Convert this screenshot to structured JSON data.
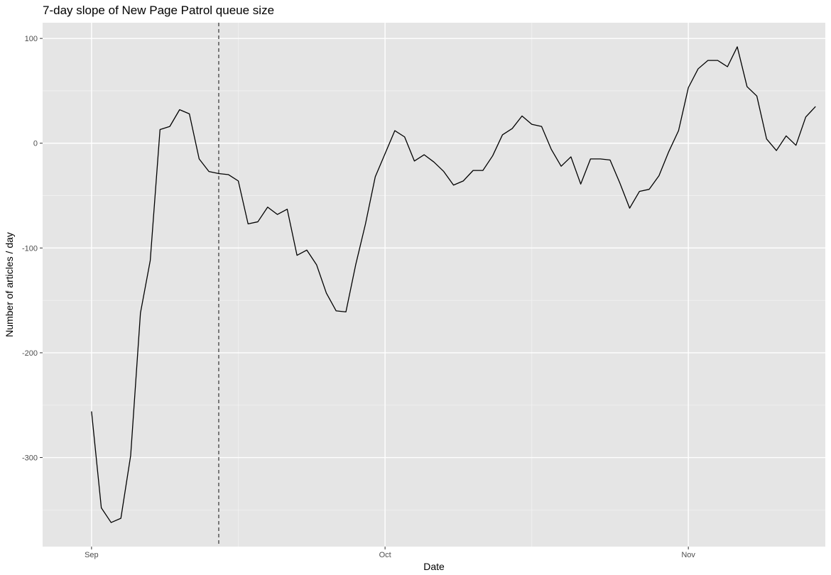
{
  "chart_data": {
    "type": "line",
    "title": "7-day slope of New Page Patrol queue size",
    "xlabel": "Date",
    "ylabel": "Number of articles / day",
    "x_start": "2018-08-27",
    "x_end": "2018-11-15",
    "ylim": [
      -385,
      115
    ],
    "x_ticks": [
      {
        "date": "2018-09-01",
        "label": "Sep"
      },
      {
        "date": "2018-10-01",
        "label": "Oct"
      },
      {
        "date": "2018-11-01",
        "label": "Nov"
      }
    ],
    "x_minor_ticks": [
      "2018-09-16",
      "2018-10-16",
      "2018-11-16"
    ],
    "y_ticks": [
      {
        "value": 100,
        "label": "100"
      },
      {
        "value": 0,
        "label": "0"
      },
      {
        "value": -100,
        "label": "-100"
      },
      {
        "value": -200,
        "label": "-200"
      },
      {
        "value": -300,
        "label": "-300"
      }
    ],
    "y_minor_ticks": [
      50,
      -50,
      -150,
      -250,
      -350
    ],
    "vline": {
      "date": "2018-09-14",
      "style": "dashed"
    },
    "series": [
      {
        "color": "#000000",
        "x": [
          "2018-09-01",
          "2018-09-02",
          "2018-09-03",
          "2018-09-04",
          "2018-09-05",
          "2018-09-06",
          "2018-09-07",
          "2018-09-08",
          "2018-09-09",
          "2018-09-10",
          "2018-09-11",
          "2018-09-12",
          "2018-09-13",
          "2018-09-14",
          "2018-09-15",
          "2018-09-16",
          "2018-09-17",
          "2018-09-18",
          "2018-09-19",
          "2018-09-20",
          "2018-09-21",
          "2018-09-22",
          "2018-09-23",
          "2018-09-24",
          "2018-09-25",
          "2018-09-26",
          "2018-09-27",
          "2018-09-28",
          "2018-09-29",
          "2018-09-30",
          "2018-10-01",
          "2018-10-02",
          "2018-10-03",
          "2018-10-04",
          "2018-10-05",
          "2018-10-06",
          "2018-10-07",
          "2018-10-08",
          "2018-10-09",
          "2018-10-10",
          "2018-10-11",
          "2018-10-12",
          "2018-10-13",
          "2018-10-14",
          "2018-10-15",
          "2018-10-16",
          "2018-10-17",
          "2018-10-18",
          "2018-10-19",
          "2018-10-20",
          "2018-10-21",
          "2018-10-22",
          "2018-10-23",
          "2018-10-24",
          "2018-10-25",
          "2018-10-26",
          "2018-10-27",
          "2018-10-28",
          "2018-10-29",
          "2018-10-30",
          "2018-10-31",
          "2018-11-01",
          "2018-11-02",
          "2018-11-03",
          "2018-11-04",
          "2018-11-05",
          "2018-11-06",
          "2018-11-07",
          "2018-11-08",
          "2018-11-09",
          "2018-11-10",
          "2018-11-11",
          "2018-11-12",
          "2018-11-13",
          "2018-11-14"
        ],
        "values": [
          -256,
          -348,
          -362,
          -358,
          -298,
          -162,
          -112,
          13,
          16,
          32,
          28,
          -15,
          -27,
          -29,
          -30,
          -36,
          -77,
          -75,
          -61,
          -68,
          -63,
          -107,
          -102,
          -116,
          -143,
          -160,
          -161,
          -116,
          -77,
          -32,
          -10,
          12,
          6,
          -17,
          -11,
          -18,
          -27,
          -40,
          -36,
          -26,
          -26,
          -12,
          8,
          14,
          26,
          18,
          16,
          -6,
          -22,
          -13,
          -39,
          -15,
          -15,
          -16,
          -38,
          -62,
          -46,
          -44,
          -31,
          -8,
          12,
          53,
          71,
          79,
          79,
          73,
          92,
          54,
          45,
          4,
          -7,
          7,
          -2,
          25,
          35
        ]
      }
    ]
  }
}
